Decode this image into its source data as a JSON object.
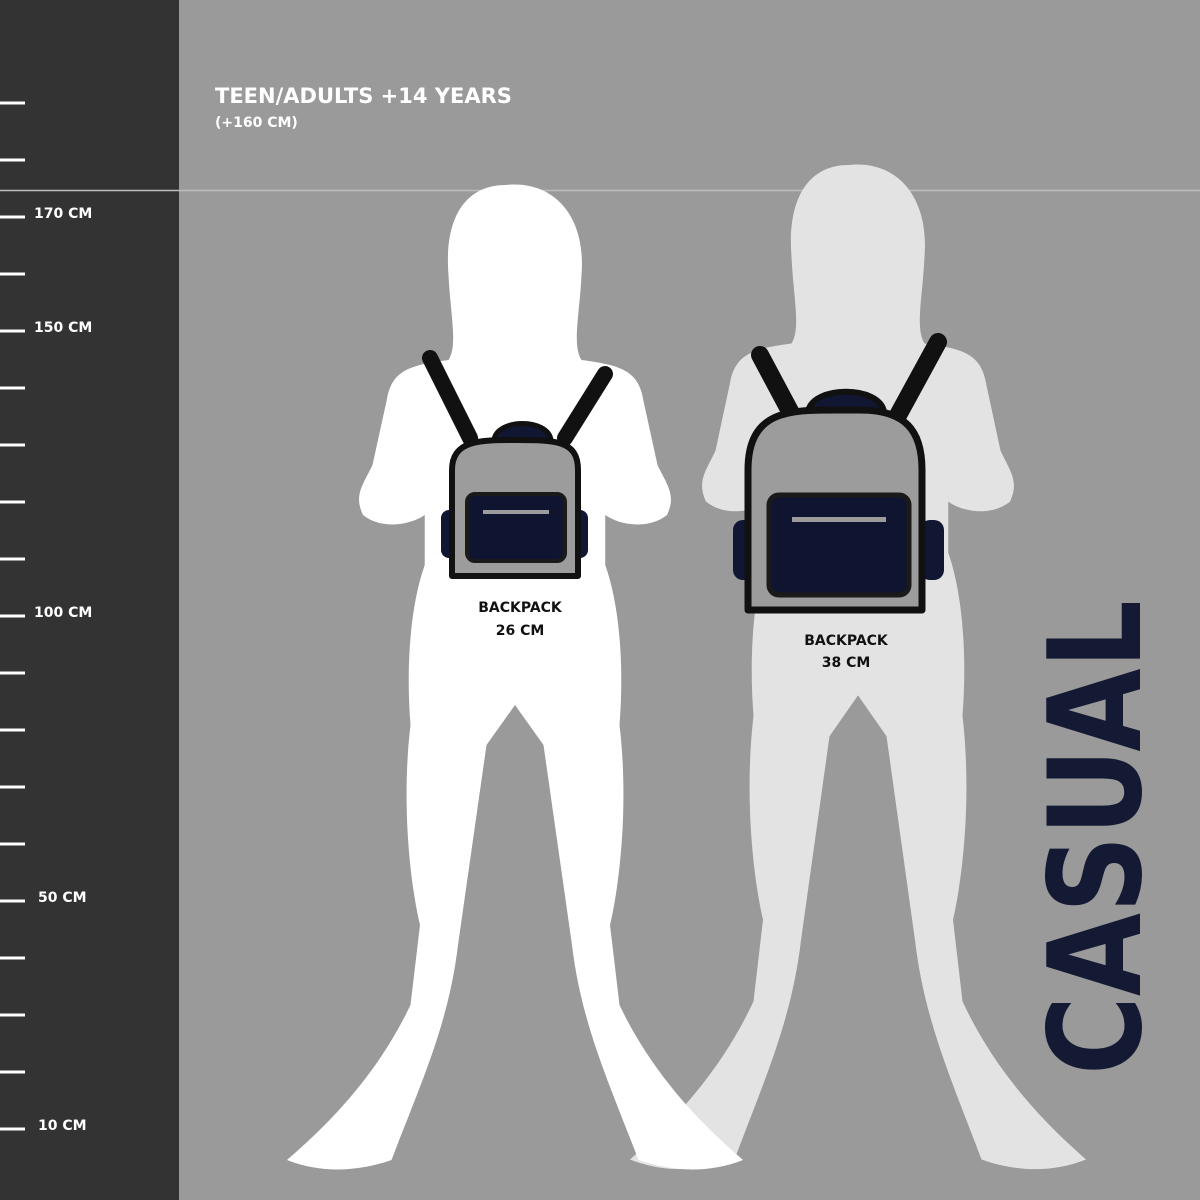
{
  "header": {
    "title": "TEEN/ADULTS +14 YEARS",
    "subtitle": "(+160 CM)"
  },
  "ruler": {
    "labels": [
      "170 CM",
      "150 CM",
      "100 CM",
      "50 CM",
      "10 CM"
    ]
  },
  "figures": [
    {
      "label_line1": "BACKPACK",
      "label_line2": "26 CM"
    },
    {
      "label_line1": "BACKPACK",
      "label_line2": "38 CM"
    }
  ],
  "brand": {
    "text": "CASUAL"
  },
  "colors": {
    "background": "#9a9a9a",
    "ruler_panel": "#333333",
    "figure_1": "#ffffff",
    "figure_2": "#e3e3e3",
    "navy": "#111733",
    "backpack_gray": "#9c9c9c"
  }
}
